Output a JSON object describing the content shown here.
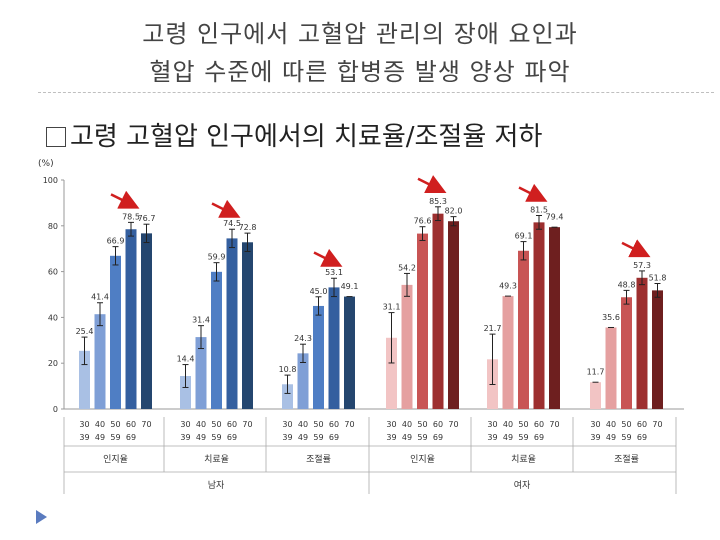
{
  "slide": {
    "title_line1": "고령 인구에서 고혈압 관리의 장애 요인과",
    "title_line2": "혈압 수준에 따른 합병증 발생 양상 파악",
    "bullet": "고령 고혈압 인구에서의 치료율/조절율 저하"
  },
  "chart_data": {
    "type": "bar",
    "ylabel": "(%)",
    "ylim": [
      0,
      100
    ],
    "yticks": [
      0,
      20,
      40,
      60,
      80,
      100
    ],
    "age_groups": [
      "30-39",
      "40-49",
      "50-59",
      "60-69",
      "70+"
    ],
    "age_top": [
      "30",
      "40",
      "50",
      "60",
      "70"
    ],
    "age_bottom": [
      "39",
      "49",
      "59",
      "69",
      ""
    ],
    "groups": [
      {
        "sex": "남자",
        "label": "인지율",
        "values": [
          25.4,
          41.4,
          66.9,
          78.5,
          76.7
        ],
        "labels": [
          "25.4",
          "41.4",
          "66.9",
          "78.5",
          "76.7"
        ],
        "errors": [
          6,
          5,
          4,
          3,
          4
        ],
        "colors": [
          "#a9c0e4",
          "#7f9fd6",
          "#4f7ec4",
          "#345f9f",
          "#24466f"
        ]
      },
      {
        "sex": "남자",
        "label": "치료율",
        "values": [
          14.4,
          31.4,
          59.9,
          74.5,
          72.8
        ],
        "labels": [
          "14.4",
          "31.4",
          "59.9",
          "74.5",
          "72.8"
        ],
        "errors": [
          5,
          5,
          4,
          4,
          4
        ],
        "colors": [
          "#a9c0e4",
          "#7f9fd6",
          "#4f7ec4",
          "#345f9f",
          "#24466f"
        ]
      },
      {
        "sex": "남자",
        "label": "조절률",
        "values": [
          10.8,
          24.3,
          45.0,
          53.1,
          49.1
        ],
        "labels": [
          "10.8",
          "24.3",
          "45.0",
          "53.1",
          "49.1"
        ],
        "errors": [
          4,
          4,
          4,
          4,
          0
        ],
        "colors": [
          "#a9c0e4",
          "#7f9fd6",
          "#4f7ec4",
          "#345f9f",
          "#24466f"
        ]
      },
      {
        "sex": "여자",
        "label": "인지율",
        "values": [
          31.1,
          54.2,
          76.6,
          85.3,
          82.0
        ],
        "labels": [
          "31.1",
          "54.2",
          "76.6",
          "85.3",
          "82.0"
        ],
        "errors": [
          11,
          5,
          3,
          3,
          2
        ],
        "colors": [
          "#f2c4c4",
          "#e5a0a0",
          "#c85454",
          "#9d2f2f",
          "#6e1f1f"
        ]
      },
      {
        "sex": "여자",
        "label": "치료율",
        "values": [
          21.7,
          49.3,
          69.1,
          81.5,
          79.4
        ],
        "labels": [
          "21.7",
          "49.3",
          "69.1",
          "81.5",
          "79.4"
        ],
        "errors": [
          11,
          0,
          4,
          3,
          0
        ],
        "colors": [
          "#f2c4c4",
          "#e5a0a0",
          "#c85454",
          "#9d2f2f",
          "#6e1f1f"
        ]
      },
      {
        "sex": "여자",
        "label": "조절률",
        "values": [
          11.7,
          35.6,
          48.8,
          57.3,
          51.8
        ],
        "labels": [
          "11.7",
          "35.6",
          "48.8",
          "57.3",
          "51.8"
        ],
        "errors": [
          0,
          0,
          3,
          3,
          3
        ],
        "colors": [
          "#f2c4c4",
          "#e5a0a0",
          "#c85454",
          "#9d2f2f",
          "#6e1f1f"
        ]
      }
    ],
    "sex_labels": [
      "남자",
      "여자"
    ],
    "annotation": "red arrows mark the decline from the 60-69 to 70+ age group in each panel"
  }
}
